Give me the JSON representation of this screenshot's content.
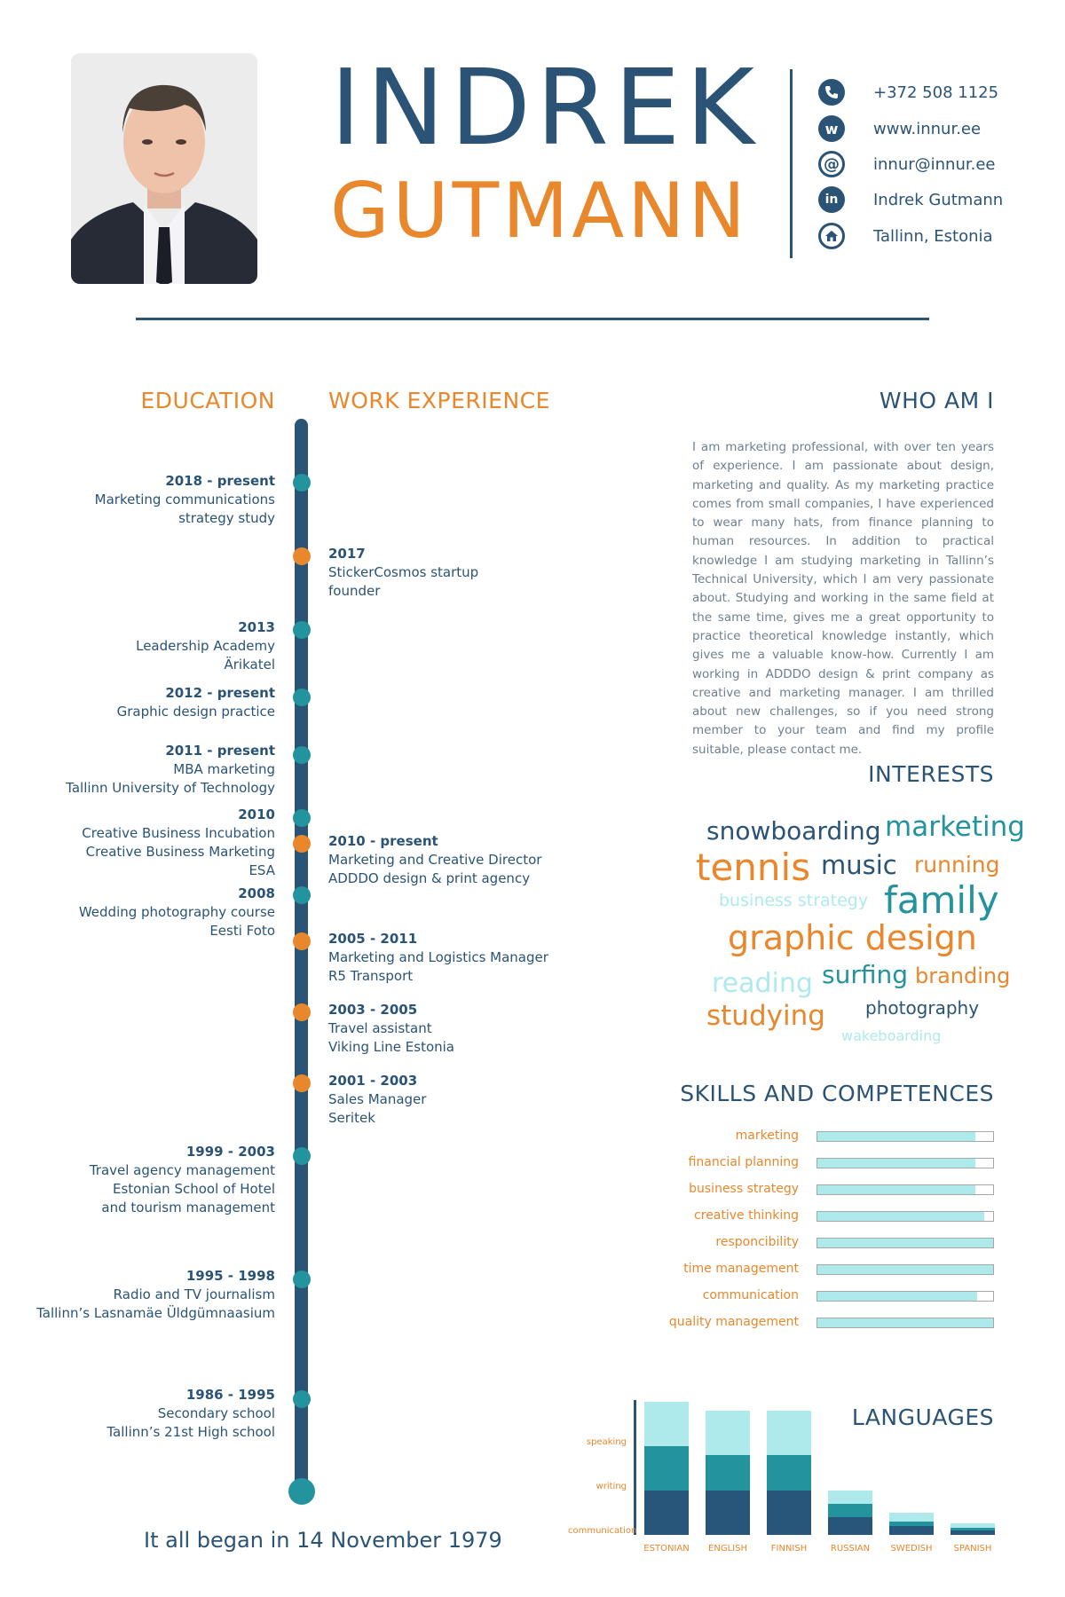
{
  "header": {
    "first_name": "INDREK",
    "last_name": "GUTMANN"
  },
  "contacts": [
    {
      "icon": "phone-icon",
      "text": "+372 508 1125"
    },
    {
      "icon": "web-icon",
      "glyph": "w",
      "text": "www.innur.ee"
    },
    {
      "icon": "email-icon",
      "glyph": "@",
      "text": "innur@innur.ee"
    },
    {
      "icon": "linkedin-icon",
      "glyph": "in",
      "text": "Indrek Gutmann"
    },
    {
      "icon": "home-icon",
      "text": "Tallinn, Estonia"
    }
  ],
  "sections": {
    "education": "EDUCATION",
    "work": "WORK EXPERIENCE",
    "who": "WHO AM I",
    "interests": "INTERESTS",
    "skills": "SKILLS AND COMPETENCES",
    "languages": "LANGUAGES"
  },
  "education": [
    {
      "date": "2018 - present",
      "lines": [
        "Marketing communications",
        "strategy study"
      ]
    },
    {
      "date": "2013",
      "lines": [
        "Leadership Academy",
        "Ärikatel"
      ]
    },
    {
      "date": "2012 - present",
      "lines": [
        "Graphic design practice"
      ]
    },
    {
      "date": "2011 - present",
      "lines": [
        "MBA marketing",
        "Tallinn University of Technology"
      ]
    },
    {
      "date": "2010",
      "lines": [
        "Creative Business Incubation",
        "Creative Business Marketing",
        "ESA"
      ]
    },
    {
      "date": "2008",
      "lines": [
        "Wedding photography course",
        "Eesti Foto"
      ]
    },
    {
      "date": "1999 - 2003",
      "lines": [
        "Travel agency management",
        "Estonian School of Hotel",
        "and tourism management"
      ]
    },
    {
      "date": "1995 - 1998",
      "lines": [
        "Radio and TV journalism",
        "Tallinn’s Lasnamäe Üldgümnaasium"
      ]
    },
    {
      "date": "1986 - 1995",
      "lines": [
        "Secondary school",
        "Tallinn’s 21st High school"
      ]
    }
  ],
  "work": [
    {
      "date": "2017",
      "lines": [
        "StickerCosmos startup",
        "founder"
      ]
    },
    {
      "date": "2010 - present",
      "lines": [
        "Marketing and Creative Director",
        "ADDDO design & print agency"
      ]
    },
    {
      "date": "2005 - 2011",
      "lines": [
        "Marketing and Logistics Manager",
        "R5 Transport"
      ]
    },
    {
      "date": "2003 - 2005",
      "lines": [
        "Travel assistant",
        "Viking Line Estonia"
      ]
    },
    {
      "date": "2001 - 2003",
      "lines": [
        "Sales Manager",
        "Seritek"
      ]
    }
  ],
  "birth_text": "It all began in 14 November 1979",
  "about": "I am marketing professional, with over ten years of experience. I am passionate about design, marketing and quality. As my marketing practice comes from small companies, I have experienced to wear many hats, from finance planning to human resources. In addition to practical knowledge I am studying marketing in Tallinn’s Technical University, which I am very passionate about. Studying and working in the same field at the same time, gives me a great opportunity to practice theoretical knowledge instantly, which gives me a valuable know-how. Currently I am working in ADDDO design & print company as creative and marketing manager. I am thrilled about new challenges, so if you need strong member to your team and find my profile suitable, please contact me.",
  "interests": [
    {
      "text": "snowboarding",
      "color": "#2a5375"
    },
    {
      "text": "marketing",
      "color": "#23939d"
    },
    {
      "text": "tennis",
      "color": "#e8872c"
    },
    {
      "text": "music",
      "color": "#2a5375"
    },
    {
      "text": "running",
      "color": "#e8872c"
    },
    {
      "text": "business strategy",
      "color": "#aeeaec"
    },
    {
      "text": "family",
      "color": "#23939d"
    },
    {
      "text": "graphic design",
      "color": "#e8872c"
    },
    {
      "text": "reading",
      "color": "#aeeaec"
    },
    {
      "text": "surfing",
      "color": "#23939d"
    },
    {
      "text": "branding",
      "color": "#e8872c"
    },
    {
      "text": "studying",
      "color": "#e8872c"
    },
    {
      "text": "photography",
      "color": "#2a5375"
    },
    {
      "text": "wakeboarding",
      "color": "#aeeaec"
    }
  ],
  "skills": [
    {
      "name": "marketing",
      "level": 0.9
    },
    {
      "name": "financial planning",
      "level": 0.9
    },
    {
      "name": "business strategy",
      "level": 0.9
    },
    {
      "name": "creative thinking",
      "level": 0.95
    },
    {
      "name": "responcibility",
      "level": 1.0
    },
    {
      "name": "time management",
      "level": 1.0
    },
    {
      "name": "communication",
      "level": 0.91
    },
    {
      "name": "quality management",
      "level": 1.0
    }
  ],
  "chart_data": {
    "type": "bar",
    "stacked": true,
    "categories": [
      "ESTONIAN",
      "ENGLISH",
      "FINNISH",
      "RUSSIAN",
      "SWEDISH",
      "SPANISH"
    ],
    "series": [
      {
        "name": "communication",
        "color": "#28567a",
        "values": [
          50,
          50,
          50,
          20,
          10,
          5
        ]
      },
      {
        "name": "writing",
        "color": "#23939d",
        "values": [
          50,
          40,
          40,
          15,
          5,
          3
        ]
      },
      {
        "name": "speaking",
        "color": "#aeeaec",
        "values": [
          50,
          50,
          50,
          15,
          10,
          5
        ]
      }
    ],
    "ymax": 150
  }
}
